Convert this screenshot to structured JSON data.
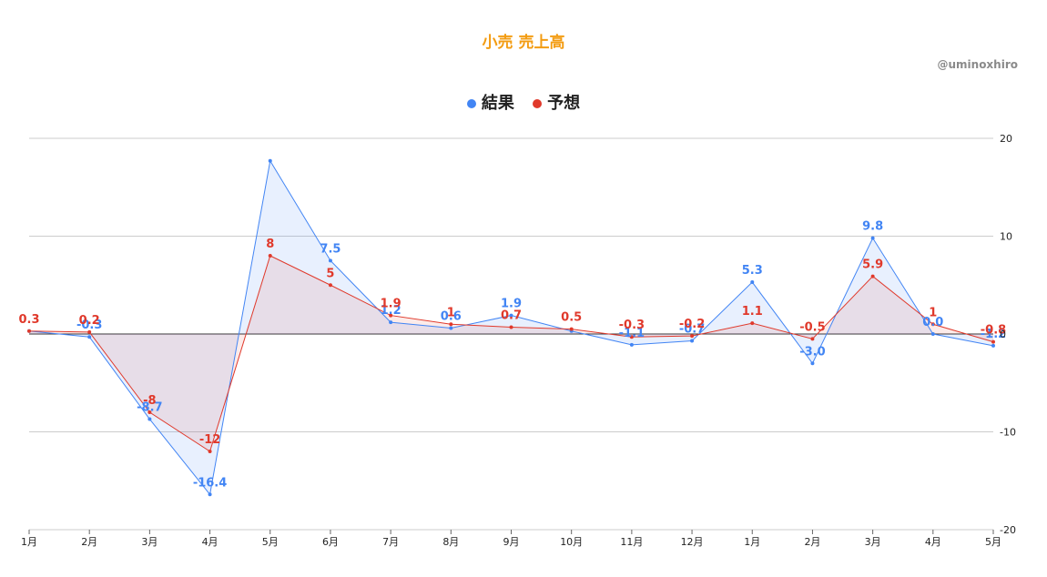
{
  "title": "小売 売上高",
  "watermark": "@uminoxhiro",
  "colors": {
    "title": "#f39c12",
    "result": "#4285f4",
    "forecast": "#e0392b"
  },
  "chart_data": {
    "type": "line",
    "title": "小売 売上高",
    "legend_position": "top",
    "grid": true,
    "categories": [
      "1月",
      "2月",
      "3月",
      "4月",
      "5月",
      "6月",
      "7月",
      "8月",
      "9月",
      "10月",
      "11月",
      "12月",
      "1月",
      "2月",
      "3月",
      "4月",
      "5月"
    ],
    "ylim": [
      -20,
      20
    ],
    "yticks": [
      "20",
      "10",
      "0",
      "-10",
      "-20"
    ],
    "series": [
      {
        "name": "結果",
        "color": "#4285f4",
        "values": [
          0.3,
          -0.3,
          -8.7,
          -16.4,
          17.7,
          7.5,
          1.2,
          0.6,
          1.9,
          0.3,
          -1.1,
          -0.7,
          5.3,
          -3.0,
          9.8,
          0.0,
          -1.2
        ],
        "labels": [
          "",
          "-0.3",
          "-8.7",
          "-16.4",
          "",
          "7.5",
          "1.2",
          "0.6",
          "1.9",
          "",
          "-1.1",
          "-0.7",
          "5.3",
          "-3.0",
          "9.8",
          "0.0",
          "-1.2"
        ]
      },
      {
        "name": "予想",
        "color": "#e0392b",
        "values": [
          0.3,
          0.2,
          -8,
          -12,
          8,
          5,
          1.9,
          1,
          0.7,
          0.5,
          -0.3,
          -0.2,
          1.1,
          -0.5,
          5.9,
          1,
          -0.8
        ],
        "labels": [
          "0.3",
          "0.2",
          "-8",
          "-12",
          "8",
          "5",
          "1.9",
          "1",
          "0.7",
          "0.5",
          "-0.3",
          "-0.2",
          "1.1",
          "-0.5",
          "5.9",
          "1",
          "-0.8"
        ]
      }
    ]
  }
}
